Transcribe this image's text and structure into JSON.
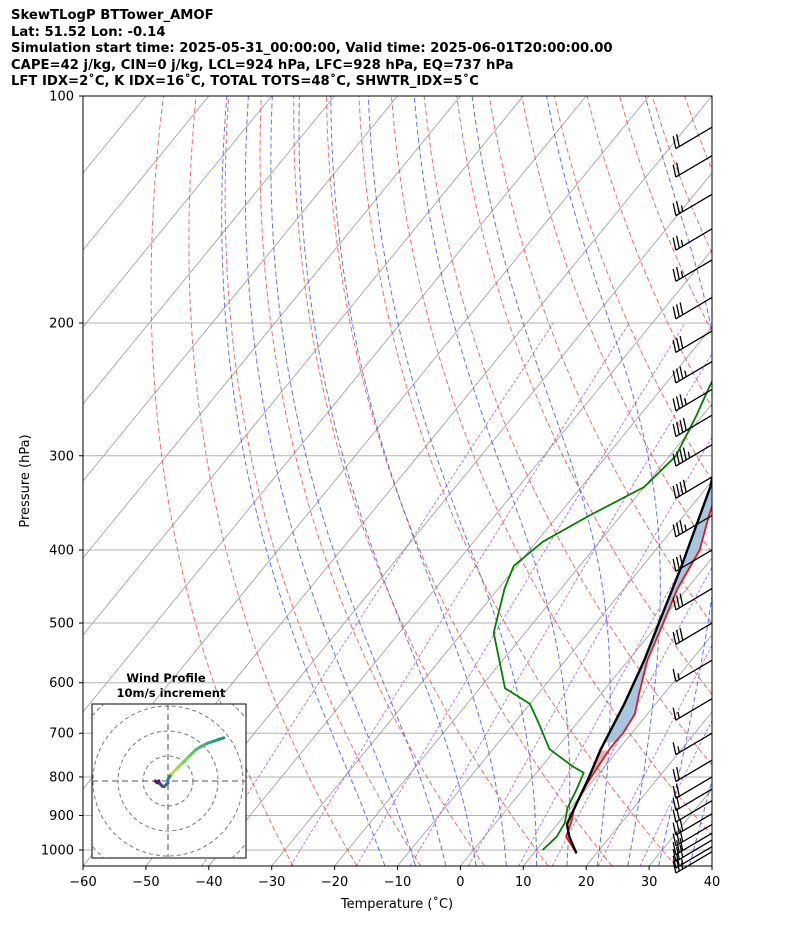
{
  "header": {
    "line1": "SkewTLogP BTTower_AMOF",
    "line2": "Lat: 51.52   Lon: -0.14",
    "line3": "Simulation start time: 2025-05-31_00:00:00, Valid time: 2025-06-01T20:00:00.00",
    "line4": "CAPE=42 j/kg, CIN=0 j/kg, LCL=924 hPa, LFC=928 hPa, EQ=737 hPa",
    "line5": "LFT IDX=2˚C, K IDX=16˚C, TOTAL TOTS=48˚C, SHWTR_IDX=5˚C"
  },
  "chart_data": {
    "type": "line",
    "xlabel": "Temperature (˚C)",
    "ylabel": "Pressure (hPa)",
    "xlim": [
      -60,
      40
    ],
    "ylim": [
      1050,
      100
    ],
    "x_ticks": [
      -60,
      -50,
      -40,
      -30,
      -20,
      -10,
      0,
      10,
      20,
      30,
      40
    ],
    "x_tick_labels": [
      "−60",
      "−50",
      "−40",
      "−30",
      "−20",
      "−10",
      "0",
      "10",
      "20",
      "30",
      "40"
    ],
    "y_ticks": [
      1000,
      900,
      800,
      700,
      600,
      500,
      400,
      300,
      200,
      100
    ],
    "y_tick_labels": [
      "1000",
      "900",
      "800",
      "700",
      "600",
      "500",
      "400",
      "300",
      "200",
      "100"
    ],
    "series": [
      {
        "name": "Temperature",
        "color": "#e8161c",
        "points": [
          [
            16.8,
            1010
          ],
          [
            13,
            960
          ],
          [
            12,
            920
          ],
          [
            10.6,
            880
          ],
          [
            9.5,
            820
          ],
          [
            9,
            780
          ],
          [
            8.5,
            730
          ],
          [
            8.6,
            700
          ],
          [
            8,
            660
          ],
          [
            6,
            620
          ],
          [
            3,
            560
          ],
          [
            0.7,
            500
          ],
          [
            -1.5,
            450
          ],
          [
            -3,
            400
          ],
          [
            -6,
            360
          ],
          [
            -9,
            320
          ],
          [
            -12,
            290
          ],
          [
            -12.7,
            270
          ],
          [
            -12.5,
            250
          ],
          [
            -11,
            235
          ],
          [
            -9,
            220
          ],
          [
            -6,
            205
          ],
          [
            -2,
            190
          ],
          [
            3,
            170
          ],
          [
            7,
            155
          ],
          [
            11,
            140
          ],
          [
            14,
            128
          ],
          [
            17,
            118
          ],
          [
            20,
            110
          ],
          [
            24,
            100
          ]
        ]
      },
      {
        "name": "Dewpoint",
        "color": "#008000",
        "points": [
          [
            11,
            1000
          ],
          [
            11.5,
            960
          ],
          [
            11,
            920
          ],
          [
            9.5,
            880
          ],
          [
            8.5,
            830
          ],
          [
            7.5,
            790
          ],
          [
            5,
            775
          ],
          [
            -1,
            735
          ],
          [
            -6,
            680
          ],
          [
            -10,
            640
          ],
          [
            -16,
            610
          ],
          [
            -25,
            515
          ],
          [
            -29,
            450
          ],
          [
            -30.5,
            420
          ],
          [
            -29,
            390
          ],
          [
            -25,
            360
          ],
          [
            -20,
            330
          ],
          [
            -19,
            300
          ],
          [
            -21,
            265
          ],
          [
            -22.5,
            245
          ],
          [
            -24,
            225
          ],
          [
            -26,
            210
          ],
          [
            -29,
            190
          ],
          [
            -29.5,
            170
          ],
          [
            -31,
            155
          ],
          [
            -30,
            140
          ],
          [
            -29,
            120
          ],
          [
            -27,
            110
          ],
          [
            -25,
            100
          ]
        ]
      },
      {
        "name": "Parcel",
        "color": "#000000",
        "points": [
          [
            16.8,
            1010
          ],
          [
            13.5,
            960
          ],
          [
            11.5,
            924
          ],
          [
            8.9,
            800
          ],
          [
            7.2,
            737
          ],
          [
            5,
            640
          ],
          [
            2.5,
            560
          ],
          [
            0,
            500
          ],
          [
            -3.8,
            420
          ],
          [
            -9.5,
            330
          ],
          [
            -17,
            260
          ],
          [
            -26,
            200
          ],
          [
            -37,
            155
          ],
          [
            -48,
            120
          ],
          [
            -57,
            100
          ]
        ]
      }
    ],
    "cape_fill": {
      "color": "#a2c4de",
      "label": "CAPE"
    },
    "cin_fill": {
      "color": "#f3a6a6",
      "label": "CIN"
    },
    "dry_adiabats_theta_c": [
      -30,
      -20,
      -10,
      0,
      10,
      20,
      30,
      40,
      50,
      60,
      70,
      80,
      90,
      100,
      110,
      120,
      130,
      140,
      150,
      160,
      170
    ],
    "moist_adiabats_start_c": [
      -15,
      -10,
      -5,
      0,
      5,
      10,
      15,
      20,
      25,
      30,
      35,
      40
    ],
    "mixing_ratio_lines_gkg": [
      0.1,
      0.4,
      1,
      2,
      4,
      7,
      10,
      16,
      24
    ],
    "wind_barbs": [
      {
        "p": 1005,
        "spd": 25,
        "dir": 255
      },
      {
        "p": 990,
        "spd": 28,
        "dir": 255
      },
      {
        "p": 970,
        "spd": 30,
        "dir": 255
      },
      {
        "p": 950,
        "spd": 30,
        "dir": 250
      },
      {
        "p": 925,
        "spd": 30,
        "dir": 250
      },
      {
        "p": 895,
        "spd": 30,
        "dir": 250
      },
      {
        "p": 860,
        "spd": 20,
        "dir": 270
      },
      {
        "p": 830,
        "spd": 20,
        "dir": 275
      },
      {
        "p": 800,
        "spd": 20,
        "dir": 265
      },
      {
        "p": 760,
        "spd": 20,
        "dir": 260
      },
      {
        "p": 700,
        "spd": 15,
        "dir": 240
      },
      {
        "p": 630,
        "spd": 15,
        "dir": 240
      },
      {
        "p": 560,
        "spd": 15,
        "dir": 240
      },
      {
        "p": 500,
        "spd": 30,
        "dir": 240
      },
      {
        "p": 450,
        "spd": 30,
        "dir": 240
      },
      {
        "p": 400,
        "spd": 30,
        "dir": 240
      },
      {
        "p": 360,
        "spd": 35,
        "dir": 240
      },
      {
        "p": 320,
        "spd": 40,
        "dir": 240
      },
      {
        "p": 290,
        "spd": 45,
        "dir": 240
      },
      {
        "p": 265,
        "spd": 40,
        "dir": 240
      },
      {
        "p": 245,
        "spd": 35,
        "dir": 240
      },
      {
        "p": 225,
        "spd": 35,
        "dir": 240
      },
      {
        "p": 205,
        "spd": 30,
        "dir": 240
      },
      {
        "p": 185,
        "spd": 30,
        "dir": 240
      },
      {
        "p": 165,
        "spd": 25,
        "dir": 240
      },
      {
        "p": 150,
        "spd": 25,
        "dir": 240
      },
      {
        "p": 135,
        "spd": 25,
        "dir": 240
      },
      {
        "p": 120,
        "spd": 20,
        "dir": 240
      },
      {
        "p": 110,
        "spd": 20,
        "dir": 240
      }
    ],
    "hodograph": {
      "title": "Wind Profile",
      "subtitle": "10m/s increment",
      "ring_step_ms": 10,
      "points_uv": [
        [
          -5,
          0
        ],
        [
          -6,
          -1
        ],
        [
          -7,
          0
        ],
        [
          -5,
          -1
        ],
        [
          -4,
          -2
        ],
        [
          -3,
          -3
        ],
        [
          -2,
          -3
        ],
        [
          -1,
          -2
        ],
        [
          0,
          -1
        ],
        [
          0,
          1
        ],
        [
          2,
          4
        ],
        [
          5,
          7
        ],
        [
          8,
          10
        ],
        [
          12,
          14
        ],
        [
          15,
          17
        ],
        [
          18,
          19
        ],
        [
          22,
          21
        ],
        [
          25,
          22
        ],
        [
          28,
          23
        ],
        [
          31,
          24
        ]
      ]
    }
  }
}
